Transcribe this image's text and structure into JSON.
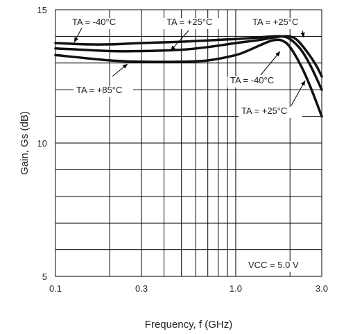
{
  "chart_data": {
    "type": "line",
    "xlabel": "Frequency, f (GHz)",
    "ylabel": "Gain, Gs (dB)",
    "x_scale": "log",
    "xlim": [
      0.1,
      3.0
    ],
    "ylim": [
      5,
      15
    ],
    "x_ticks": [
      {
        "value": 0.1,
        "label": "0.1"
      },
      {
        "value": 0.3,
        "label": "0.3"
      },
      {
        "value": 1.0,
        "label": "1.0"
      },
      {
        "value": 3.0,
        "label": "3.0"
      }
    ],
    "y_ticks": [
      {
        "value": 5,
        "label": "5"
      },
      {
        "value": 10,
        "label": "10"
      },
      {
        "value": 15,
        "label": "15"
      }
    ],
    "grid": true,
    "series": [
      {
        "name": "TA = -40°C",
        "x": [
          0.1,
          0.15,
          0.2,
          0.3,
          0.5,
          0.7,
          1.0,
          1.3,
          1.6,
          1.8,
          2.0,
          2.3,
          2.6,
          3.0
        ],
        "y": [
          13.75,
          13.7,
          13.7,
          13.75,
          13.8,
          13.85,
          13.9,
          13.95,
          14.0,
          14.0,
          13.9,
          13.5,
          12.9,
          12.0
        ]
      },
      {
        "name": "TA = +25°C",
        "x": [
          0.1,
          0.2,
          0.3,
          0.5,
          0.7,
          1.0,
          1.3,
          1.6,
          1.8,
          2.0,
          2.2,
          2.5,
          2.8,
          3.0
        ],
        "y": [
          13.55,
          13.45,
          13.45,
          13.5,
          13.6,
          13.75,
          13.85,
          13.95,
          14.0,
          14.0,
          13.85,
          13.4,
          12.9,
          12.5
        ]
      },
      {
        "name": "TA = +85°C",
        "x": [
          0.1,
          0.2,
          0.3,
          0.5,
          0.7,
          1.0,
          1.2,
          1.4,
          1.6,
          1.8,
          2.0,
          2.3,
          2.6,
          3.0
        ],
        "y": [
          13.3,
          13.1,
          13.05,
          13.05,
          13.1,
          13.3,
          13.5,
          13.7,
          13.85,
          13.85,
          13.6,
          12.9,
          12.1,
          11.0
        ]
      }
    ],
    "annotations": [
      "TA = -40°C",
      "TA = +25°C",
      "TA = +25°C",
      "TA = +85°C",
      "TA = -40°C",
      "TA = +25°C",
      "VCC = 5.0 V"
    ]
  }
}
